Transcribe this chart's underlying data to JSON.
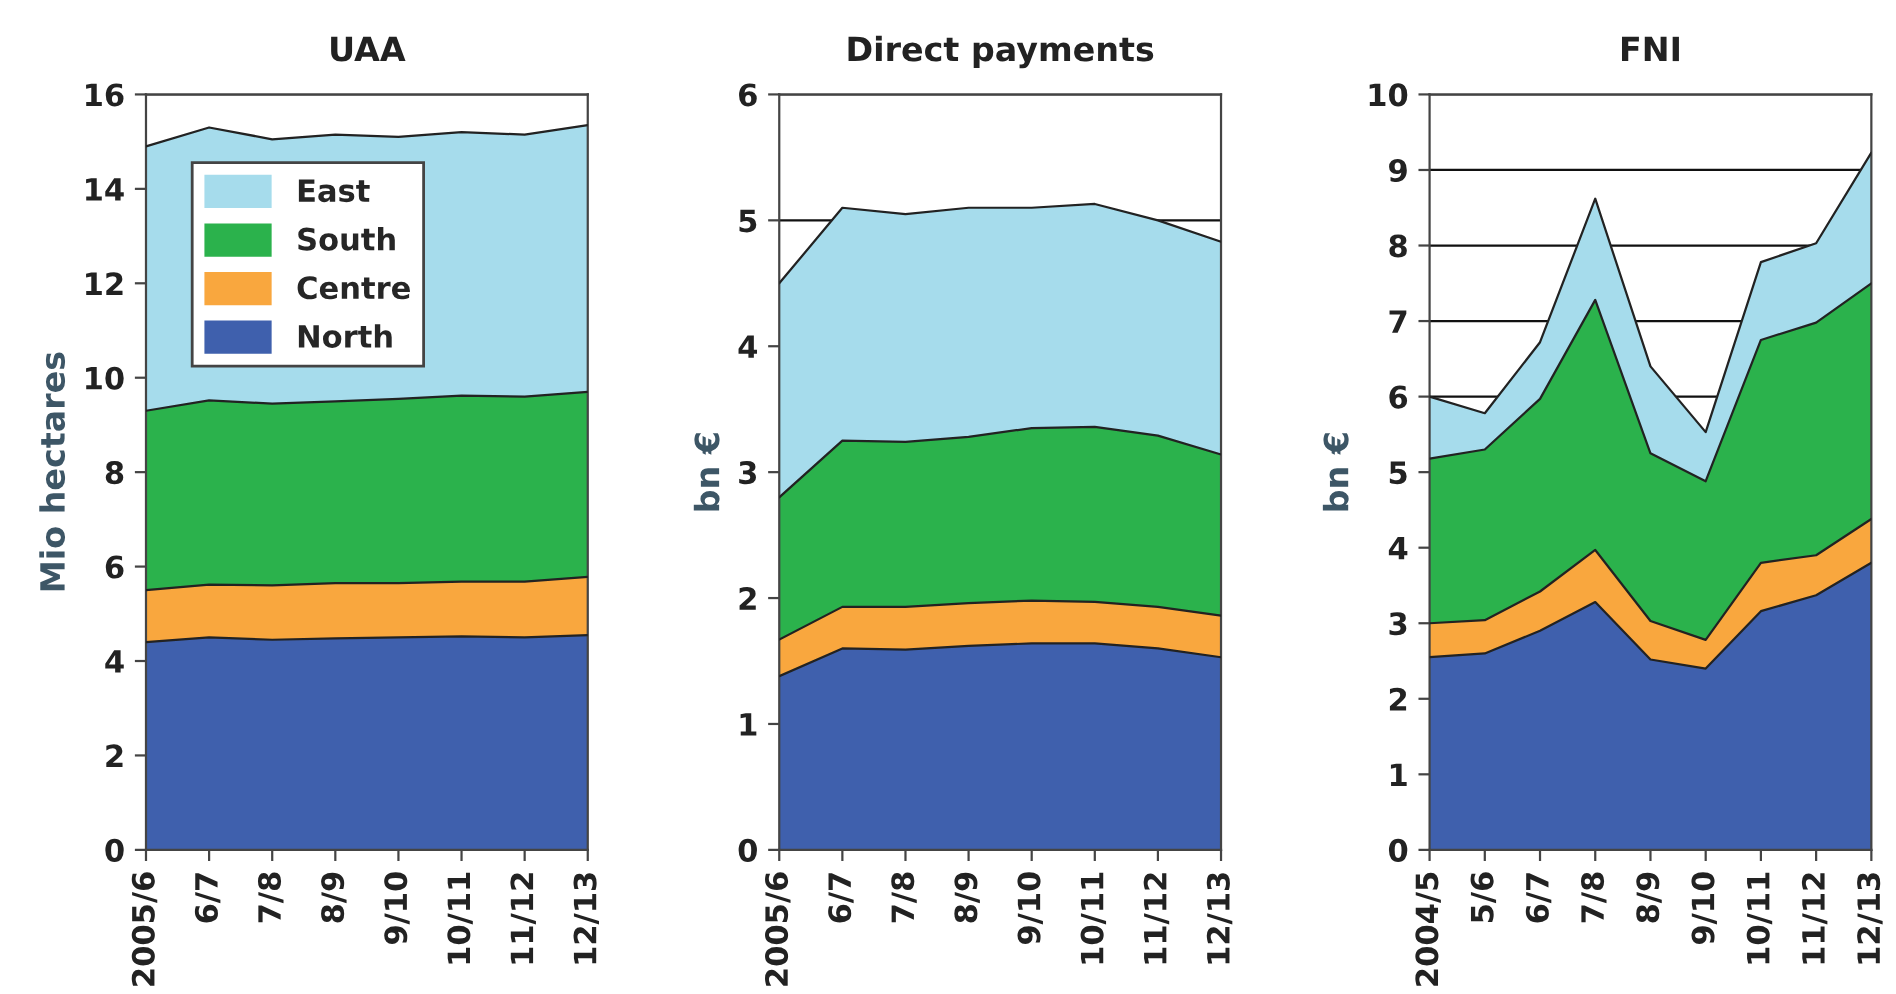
{
  "chart_data": [
    {
      "type": "area",
      "title": "UAA",
      "ylabel": "Mio hectares",
      "stacked": true,
      "categories": [
        "2005/6",
        "6/7",
        "7/8",
        "8/9",
        "9/10",
        "10/11",
        "11/12",
        "12/13"
      ],
      "ylim": [
        0,
        16
      ],
      "yticks": [
        0,
        2,
        4,
        6,
        8,
        10,
        12,
        14,
        16
      ],
      "grid": "y",
      "legend": "top left",
      "series": [
        {
          "name": "North",
          "color": "#3f60ad",
          "values": [
            4.4,
            4.5,
            4.45,
            4.48,
            4.5,
            4.52,
            4.5,
            4.55
          ]
        },
        {
          "name": "Centre",
          "color": "#f9a73e",
          "values": [
            1.1,
            1.12,
            1.15,
            1.17,
            1.15,
            1.16,
            1.18,
            1.23
          ]
        },
        {
          "name": "South",
          "color": "#2bb24c",
          "values": [
            3.8,
            3.9,
            3.85,
            3.85,
            3.9,
            3.94,
            3.92,
            3.92
          ]
        },
        {
          "name": "East",
          "color": "#a6dcec",
          "values": [
            5.6,
            5.78,
            5.6,
            5.65,
            5.55,
            5.58,
            5.55,
            5.65
          ]
        }
      ]
    },
    {
      "type": "area",
      "title": "Direct payments",
      "ylabel": "bn €",
      "stacked": true,
      "categories": [
        "2005/6",
        "6/7",
        "7/8",
        "8/9",
        "9/10",
        "10/11",
        "11/12",
        "12/13"
      ],
      "ylim": [
        0,
        6
      ],
      "yticks": [
        0,
        1,
        2,
        3,
        4,
        5,
        6
      ],
      "grid": "y",
      "series": [
        {
          "color": "#3f60ad",
          "values": [
            1.38,
            1.6,
            1.59,
            1.62,
            1.64,
            1.64,
            1.6,
            1.53
          ]
        },
        {
          "color": "#f9a73e",
          "values": [
            0.29,
            0.33,
            0.34,
            0.34,
            0.34,
            0.33,
            0.33,
            0.33
          ]
        },
        {
          "color": "#2bb24c",
          "values": [
            1.13,
            1.32,
            1.31,
            1.32,
            1.37,
            1.39,
            1.36,
            1.28
          ]
        },
        {
          "color": "#a6dcec",
          "values": [
            1.7,
            1.85,
            1.81,
            1.82,
            1.75,
            1.77,
            1.71,
            1.69
          ]
        }
      ]
    },
    {
      "type": "area",
      "title": "FNI",
      "ylabel": "bn €",
      "stacked": true,
      "categories": [
        "2004/5",
        "5/6",
        "6/7",
        "7/8",
        "8/9",
        "9/10",
        "10/11",
        "11/12",
        "12/13"
      ],
      "ylim": [
        0,
        10
      ],
      "yticks": [
        0,
        1,
        2,
        3,
        4,
        5,
        6,
        7,
        8,
        9,
        10
      ],
      "grid": "y",
      "series": [
        {
          "color": "#3f60ad",
          "values": [
            2.55,
            2.6,
            2.9,
            3.28,
            2.52,
            2.4,
            3.16,
            3.37,
            3.8
          ]
        },
        {
          "color": "#f9a73e",
          "values": [
            0.45,
            0.44,
            0.52,
            0.69,
            0.51,
            0.38,
            0.64,
            0.53,
            0.58
          ]
        },
        {
          "color": "#2bb24c",
          "values": [
            2.18,
            2.26,
            2.55,
            3.31,
            2.22,
            2.1,
            2.95,
            3.08,
            3.12
          ]
        },
        {
          "color": "#a6dcec",
          "values": [
            0.82,
            0.48,
            0.75,
            1.34,
            1.15,
            0.65,
            1.03,
            1.05,
            1.73
          ]
        }
      ]
    }
  ]
}
